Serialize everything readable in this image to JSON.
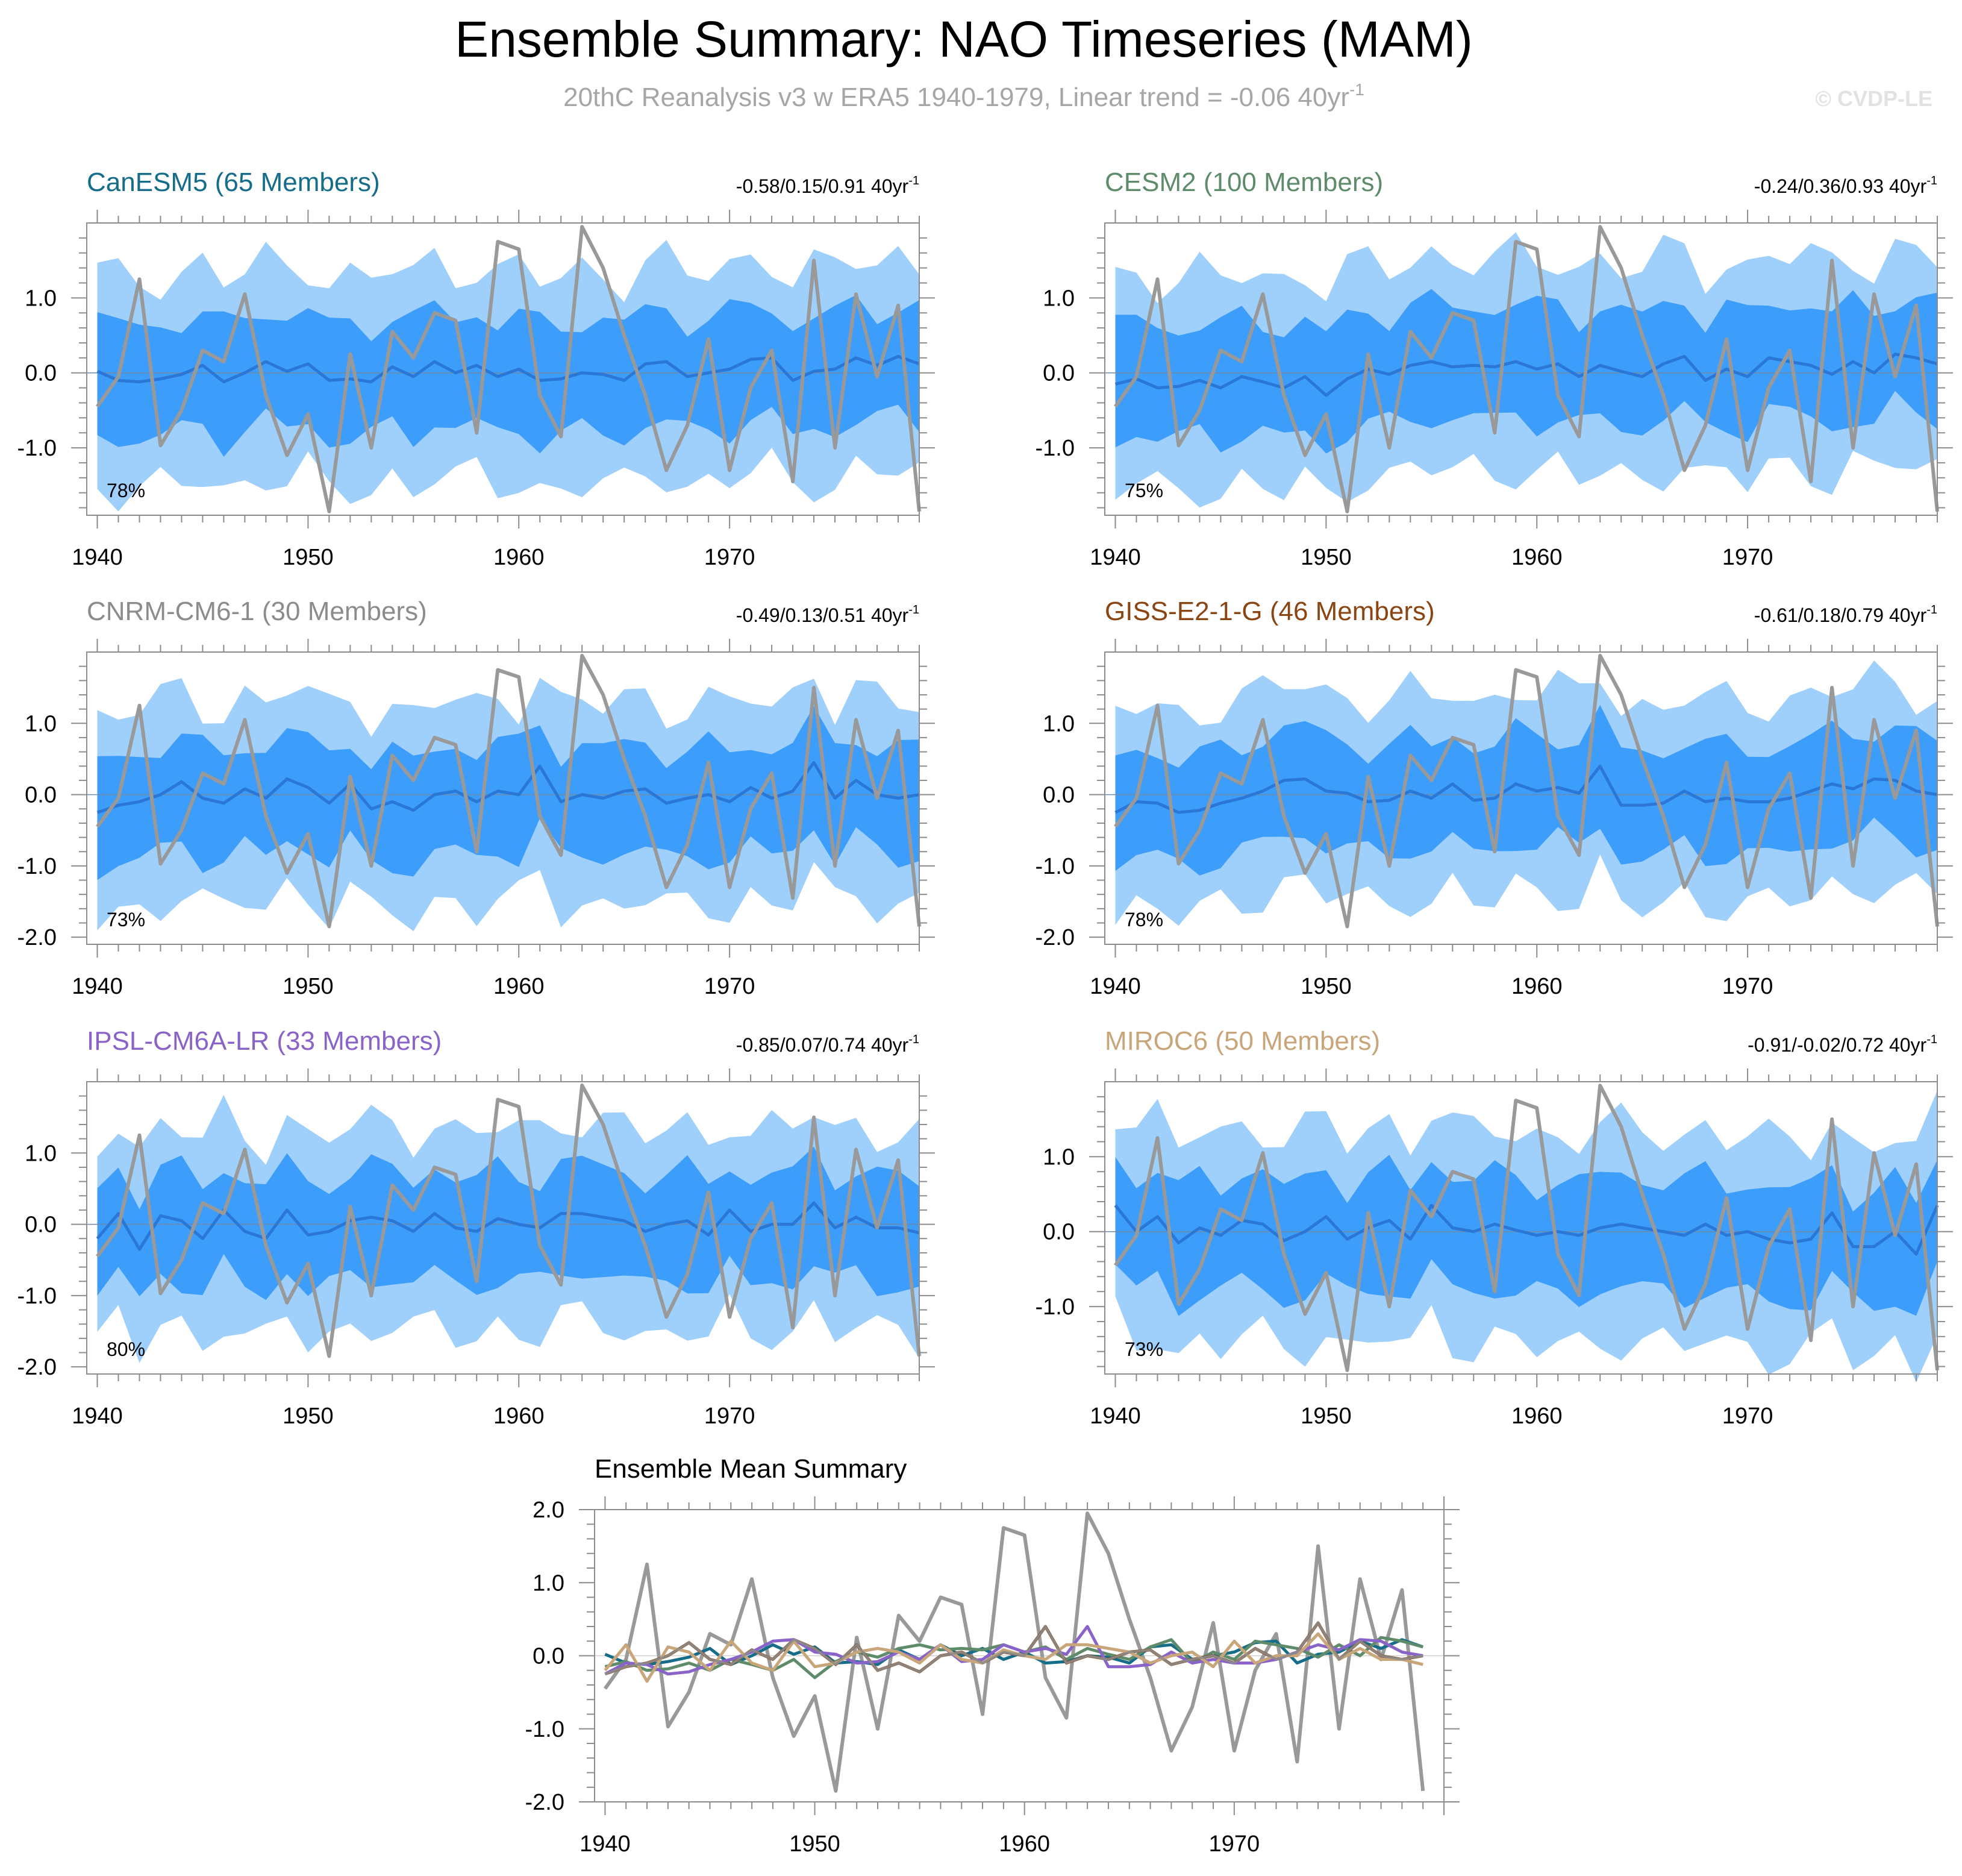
{
  "figure": {
    "title": "Ensemble Summary: NAO Timeseries (MAM)",
    "subtitle_main": "20thC Reanalysis v3 w ERA5 1940-1979, Linear trend = -0.06 40yr",
    "subtitle_sup": "-1",
    "watermark": "© CVDP-LE"
  },
  "colors": {
    "band_outer": "#9fcffb",
    "band_inner": "#3d9dfa",
    "ens_mean_line": "#2a77d6",
    "observed_line": "#999999",
    "axis": "#8c8c8c",
    "title_text": "#000000",
    "subtitle_text": "#a6a6a6"
  },
  "chart_data": [
    {
      "type": "line",
      "title": "CanESM5 (65 Members)",
      "title_color": "#156d8a",
      "trend_text": "-0.58/0.15/0.91 40yr",
      "trend_sup": "-1",
      "percent_label": "78%",
      "xticks": [
        1940,
        1950,
        1960,
        1970
      ],
      "xlim": [
        1939.5,
        1979
      ],
      "yticks": [
        1.0,
        0.0,
        -1.0
      ],
      "ytick_labels": [
        "1.0",
        "0.0",
        "-1.0"
      ],
      "ylim": [
        -1.9,
        2.0
      ],
      "offset": 0.0
    },
    {
      "type": "line",
      "title": "CESM2 (100 Members)",
      "title_color": "#5e8c6a",
      "trend_text": "-0.24/0.36/0.93 40yr",
      "trend_sup": "-1",
      "percent_label": "75%",
      "xticks": [
        1940,
        1950,
        1960,
        1970
      ],
      "xlim": [
        1939.5,
        1979
      ],
      "yticks": [
        1.0,
        0.0,
        -1.0
      ],
      "ytick_labels": [
        "1.0",
        "0.0",
        "-1.0"
      ],
      "ylim": [
        -1.9,
        2.0
      ],
      "offset": 0.07
    },
    {
      "type": "line",
      "title": "CNRM-CM6-1 (30 Members)",
      "title_color": "#8c8c8c",
      "trend_text": "-0.49/0.13/0.51 40yr",
      "trend_sup": "-1",
      "percent_label": "73%",
      "xticks": [
        1940,
        1950,
        1960,
        1970
      ],
      "xlim": [
        1939.5,
        1979
      ],
      "yticks": [
        1.0,
        0.0,
        -1.0,
        -2.0
      ],
      "ytick_labels": [
        "1.0",
        "0.0",
        "-1.0",
        "-2.0"
      ],
      "ylim": [
        -2.1,
        2.0
      ],
      "offset": -0.05
    },
    {
      "type": "line",
      "title": "GISS-E2-1-G (46 Members)",
      "title_color": "#8b4513",
      "trend_text": "-0.61/0.18/0.79 40yr",
      "trend_sup": "-1",
      "percent_label": "78%",
      "xticks": [
        1940,
        1950,
        1960,
        1970
      ],
      "xlim": [
        1939.5,
        1979
      ],
      "yticks": [
        1.0,
        0.0,
        -1.0,
        -2.0
      ],
      "ytick_labels": [
        "1.0",
        "0.0",
        "-1.0",
        "-2.0"
      ],
      "ylim": [
        -2.1,
        2.0
      ],
      "offset": 0.02
    },
    {
      "type": "line",
      "title": "IPSL-CM6A-LR (33 Members)",
      "title_color": "#8a63c9",
      "trend_text": "-0.85/0.07/0.74 40yr",
      "trend_sup": "-1",
      "percent_label": "80%",
      "xticks": [
        1940,
        1950,
        1960,
        1970
      ],
      "xlim": [
        1939.5,
        1979
      ],
      "yticks": [
        1.0,
        0.0,
        -1.0,
        -2.0
      ],
      "ytick_labels": [
        "1.0",
        "0.0",
        "-1.0",
        "-2.0"
      ],
      "ylim": [
        -2.1,
        2.0
      ],
      "offset": -0.02
    },
    {
      "type": "line",
      "title": "MIROC6 (50 Members)",
      "title_color": "#c9a57a",
      "trend_text": "-0.91/-0.02/0.72 40yr",
      "trend_sup": "-1",
      "percent_label": "73%",
      "xticks": [
        1940,
        1950,
        1960,
        1970
      ],
      "xlim": [
        1939.5,
        1979
      ],
      "yticks": [
        1.0,
        0.0,
        -1.0
      ],
      "ytick_labels": [
        "1.0",
        "0.0",
        "-1.0"
      ],
      "ylim": [
        -1.9,
        2.0
      ],
      "offset": -0.04
    },
    {
      "type": "line",
      "title": "Ensemble Mean Summary",
      "title_color": "#000000",
      "xticks": [
        1940,
        1950,
        1960,
        1970
      ],
      "xlim": [
        1939.5,
        1980
      ],
      "yticks": [
        2.0,
        1.0,
        0.0,
        -1.0,
        -2.0
      ],
      "ytick_labels": [
        "2.0",
        "1.0",
        "0.0",
        "-1.0",
        "-2.0"
      ],
      "ylim": [
        -2.0,
        2.0
      ],
      "series_colors": [
        "#156d8a",
        "#5e8c6a",
        "#8b4513",
        "#8a63c9",
        "#c9a57a"
      ]
    }
  ],
  "observed_series": {
    "name": "20thC Reanalysis v3 w ERA5",
    "years": [
      1940,
      1941,
      1942,
      1943,
      1944,
      1945,
      1946,
      1947,
      1948,
      1949,
      1950,
      1951,
      1952,
      1953,
      1954,
      1955,
      1956,
      1957,
      1958,
      1959,
      1960,
      1961,
      1962,
      1963,
      1964,
      1965,
      1966,
      1967,
      1968,
      1969,
      1970,
      1971,
      1972,
      1973,
      1974,
      1975,
      1976,
      1977,
      1978,
      1979
    ],
    "values": [
      -0.45,
      -0.05,
      1.25,
      -0.97,
      -0.5,
      0.3,
      0.15,
      1.05,
      -0.3,
      -1.1,
      -0.55,
      -1.85,
      0.25,
      -1.0,
      0.55,
      0.2,
      0.8,
      0.7,
      -0.8,
      1.75,
      1.65,
      -0.3,
      -0.85,
      1.95,
      1.4,
      0.5,
      -0.3,
      -1.3,
      -0.7,
      0.45,
      -1.3,
      -0.2,
      0.3,
      -1.45,
      1.5,
      -1.0,
      1.05,
      -0.05,
      0.9,
      -1.85
    ]
  },
  "ensemble_mean_series": {
    "years": [
      1940,
      1941,
      1942,
      1943,
      1944,
      1945,
      1946,
      1947,
      1948,
      1949,
      1950,
      1951,
      1952,
      1953,
      1954,
      1955,
      1956,
      1957,
      1958,
      1959,
      1960,
      1961,
      1962,
      1963,
      1964,
      1965,
      1966,
      1967,
      1968,
      1969,
      1970,
      1971,
      1972,
      1973,
      1974,
      1975,
      1976,
      1977,
      1978,
      1979
    ],
    "CanESM5": [
      0.02,
      -0.1,
      -0.12,
      -0.08,
      -0.02,
      0.1,
      -0.12,
      0.0,
      0.15,
      0.02,
      0.12,
      -0.1,
      -0.08,
      -0.12,
      0.08,
      -0.05,
      0.15,
      0.0,
      0.1,
      -0.05,
      0.05,
      -0.1,
      -0.08,
      0.0,
      -0.02,
      -0.1,
      0.12,
      0.15,
      -0.05,
      0.0,
      0.05,
      0.18,
      0.2,
      -0.1,
      0.02,
      0.05,
      0.2,
      0.1,
      0.22,
      0.12
    ],
    "CESM2": [
      -0.15,
      -0.08,
      -0.2,
      -0.18,
      -0.1,
      -0.2,
      -0.05,
      -0.12,
      -0.2,
      -0.05,
      -0.3,
      -0.08,
      0.05,
      -0.02,
      0.1,
      0.15,
      0.08,
      0.1,
      0.08,
      0.15,
      0.05,
      0.12,
      -0.05,
      0.1,
      0.02,
      -0.05,
      0.12,
      0.22,
      -0.1,
      0.05,
      -0.05,
      0.2,
      0.15,
      0.1,
      -0.02,
      0.15,
      0.0,
      0.25,
      0.2,
      0.12
    ],
    "CNRM-CM6-1": [
      -0.25,
      -0.15,
      -0.1,
      0.0,
      0.18,
      -0.05,
      -0.12,
      0.08,
      -0.05,
      0.22,
      0.1,
      -0.12,
      0.15,
      -0.2,
      -0.1,
      -0.22,
      0.0,
      0.05,
      -0.1,
      0.05,
      0.0,
      0.4,
      -0.1,
      0.0,
      -0.05,
      0.05,
      0.08,
      -0.12,
      -0.05,
      0.0,
      -0.1,
      0.1,
      -0.05,
      0.05,
      0.45,
      -0.05,
      0.2,
      0.0,
      -0.05,
      0.0
    ],
    "GISS-E2-1-G": [
      -0.25,
      -0.1,
      -0.12,
      -0.25,
      -0.22,
      -0.12,
      -0.05,
      0.05,
      0.2,
      0.22,
      0.05,
      0.02,
      -0.1,
      -0.08,
      0.05,
      -0.05,
      0.15,
      -0.08,
      -0.05,
      0.15,
      0.05,
      0.1,
      0.02,
      0.4,
      -0.15,
      -0.15,
      -0.12,
      0.05,
      -0.1,
      -0.05,
      -0.1,
      -0.1,
      -0.05,
      0.05,
      0.15,
      0.08,
      0.22,
      0.2,
      0.05,
      0.0
    ],
    "IPSL-CM6A-LR": [
      -0.2,
      0.15,
      -0.35,
      0.12,
      0.05,
      -0.2,
      0.2,
      -0.1,
      -0.2,
      0.2,
      -0.15,
      -0.1,
      0.05,
      0.1,
      0.05,
      -0.1,
      0.15,
      -0.05,
      -0.1,
      0.08,
      0.0,
      -0.05,
      0.15,
      0.15,
      0.1,
      0.05,
      -0.1,
      0.0,
      0.05,
      -0.15,
      0.2,
      -0.1,
      0.0,
      0.0,
      0.3,
      -0.05,
      0.1,
      -0.05,
      -0.05,
      -0.12
    ],
    "MIROC6": [
      0.35,
      0.0,
      0.2,
      -0.15,
      0.05,
      -0.05,
      0.15,
      0.1,
      -0.12,
      0.0,
      0.2,
      -0.1,
      0.05,
      0.15,
      -0.1,
      0.35,
      0.05,
      0.0,
      0.1,
      0.02,
      -0.05,
      0.0,
      -0.05,
      0.05,
      0.1,
      0.05,
      0.0,
      -0.05,
      0.1,
      -0.05,
      0.0,
      -0.1,
      -0.15,
      -0.1,
      0.25,
      -0.2,
      -0.2,
      0.0,
      -0.3,
      0.35
    ]
  }
}
